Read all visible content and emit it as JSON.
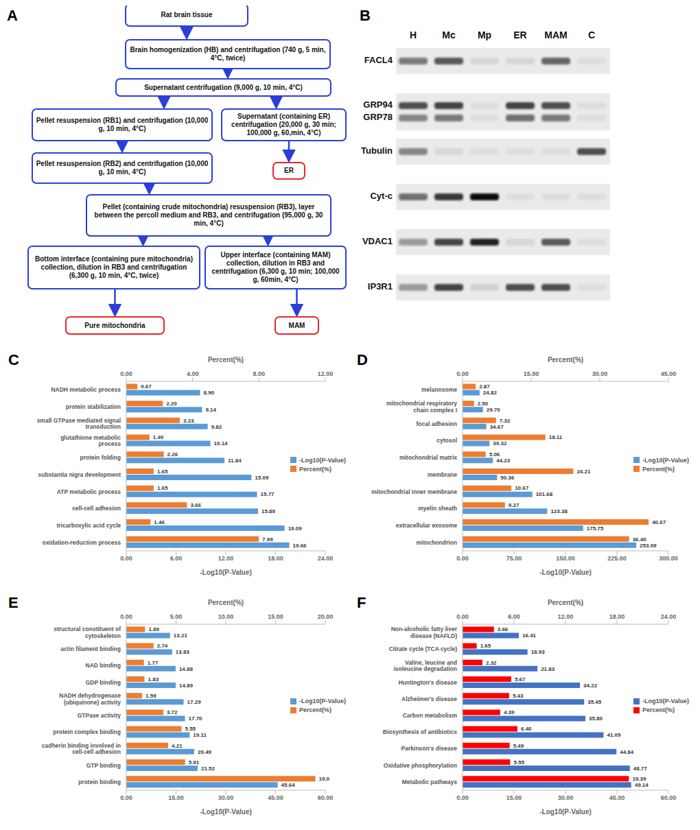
{
  "flowchart": {
    "panel": "A",
    "nodes": [
      {
        "label": "Rat brain tissue",
        "color": "#2b3fd8"
      },
      {
        "label": "Brain homogenization (HB) and centrifugation (740 g, 5 min, 4°C, twice)",
        "color": "#2b3fd8"
      },
      {
        "label": "Supernatant centrifugation (9,000 g, 10 min, 4°C)",
        "color": "#2b3fd8"
      },
      {
        "label": "Pellet resuspension (RB1) and centrifugation (10,000 g, 10 min, 4°C)",
        "color": "#2b3fd8"
      },
      {
        "label": "Supernatant (containing ER) centrifugation (20,000 g, 30 min; 100,000 g, 60,min, 4°C)",
        "color": "#2b3fd8"
      },
      {
        "label": "Pellet resuspension (RB2) and centrifugation (10,000 g, 10 min, 4°C)",
        "color": "#2b3fd8"
      },
      {
        "label": "ER",
        "color": "#e8262a"
      },
      {
        "label": "Pellet (containing crude mitochondria) resuspension (RB3), layer between the percoll medium and RB3, and centrifugation (95,000 g, 30 min, 4°C)",
        "color": "#2b3fd8"
      },
      {
        "label": "Bottom interface (containing pure mitochondria) collection, dilution in RB3 and centrifugation (6,300 g, 10 min, 4°C, twice)",
        "color": "#2b3fd8"
      },
      {
        "label": "Upper interface (containing MAM) collection, dilution in RB3 and centrifugation (6,300 g, 10 min; 100,000 g, 60min, 4°C)",
        "color": "#2b3fd8"
      },
      {
        "label": "Pure mitochondria",
        "color": "#e8262a"
      },
      {
        "label": "MAM",
        "color": "#e8262a"
      }
    ],
    "edges": [
      [
        0,
        1
      ],
      [
        1,
        2
      ],
      [
        2,
        3
      ],
      [
        2,
        4
      ],
      [
        3,
        5
      ],
      [
        4,
        6
      ],
      [
        5,
        7
      ],
      [
        7,
        8
      ],
      [
        7,
        9
      ],
      [
        8,
        10
      ],
      [
        9,
        11
      ]
    ]
  },
  "blot": {
    "panel": "B",
    "lanes": [
      "H",
      "Mc",
      "Mp",
      "ER",
      "MAM",
      "C"
    ],
    "strips": [
      {
        "labels": [
          "FACL4"
        ],
        "bands": [
          [
            0.5,
            0.65,
            0.08,
            0.08,
            0.6,
            0.05
          ]
        ]
      },
      {
        "labels": [
          "GRP94",
          "GRP78"
        ],
        "bands": [
          [
            0.7,
            0.75,
            0.05,
            0.75,
            0.7,
            0.05
          ],
          [
            0.45,
            0.5,
            0.05,
            0.55,
            0.5,
            0.05
          ]
        ]
      },
      {
        "labels": [
          "Tubulin"
        ],
        "bands": [
          [
            0.45,
            0.08,
            0.05,
            0.05,
            0.05,
            0.7
          ]
        ]
      },
      {
        "labels": [
          "Cyt-c"
        ],
        "bands": [
          [
            0.55,
            0.8,
            1,
            0.05,
            0.05,
            0.05
          ]
        ]
      },
      {
        "labels": [
          "VDAC1"
        ],
        "bands": [
          [
            0.35,
            0.75,
            0.9,
            0.08,
            0.65,
            0.05
          ]
        ]
      },
      {
        "labels": [
          "IP3R1"
        ],
        "bands": [
          [
            0.35,
            0.75,
            0.1,
            0.7,
            0.7,
            0.05
          ]
        ]
      }
    ]
  },
  "chart_data": [
    {
      "panel": "C",
      "type": "bar",
      "orientation": "horizontal",
      "grid": false,
      "data_labels": true,
      "legend": "right",
      "categories": [
        "NADH metabolic process",
        "protein stabilization",
        "small GTPase mediated signal transduction",
        "glutathione metabolic process",
        "protein folding",
        "substantia nigra development",
        "ATP metabolic process",
        "cell-cell adhesion",
        "tricarboxylic acid cycle",
        "oxidation-reduction process"
      ],
      "xlabel": "-Log10(P-Value)",
      "xlim": [
        0,
        24
      ],
      "xticks": [
        {
          "value": 0,
          "label": "0.00"
        },
        {
          "value": 6,
          "label": "6.00"
        },
        {
          "value": 12,
          "label": "12.00"
        },
        {
          "value": 18,
          "label": "18.00"
        },
        {
          "value": 24,
          "label": "24.00"
        }
      ],
      "x2label": "Percent(%)",
      "x2lim": [
        0,
        12
      ],
      "x2ticks": [
        {
          "value": 0,
          "label": "0.00"
        },
        {
          "value": 4,
          "label": "4.00"
        },
        {
          "value": 8,
          "label": "8.00"
        },
        {
          "value": 12,
          "label": "12.00"
        }
      ],
      "series": [
        {
          "name": "-Log10(P-Value)",
          "color": "#5b9bd5",
          "values": [
            8.9,
            9.14,
            9.82,
            10.14,
            11.84,
            15.09,
            15.77,
            15.89,
            19.09,
            19.66
          ],
          "value_labels": [
            "8.90",
            "9.14",
            "9.82",
            "10.14",
            "11.84",
            "15.09",
            "15.77",
            "15.89",
            "19.09",
            "19.66"
          ]
        },
        {
          "name": "Percent(%)",
          "color": "#ed7d31",
          "axis": "x2",
          "values": [
            0.67,
            2.2,
            3.23,
            1.4,
            2.26,
            1.65,
            1.65,
            3.66,
            1.46,
            7.99
          ],
          "value_labels": [
            "0.67",
            "2.20",
            "3.23",
            "1.40",
            "2.26",
            "1.65",
            "1.65",
            "3.66",
            "1.46",
            "7.99"
          ]
        }
      ]
    },
    {
      "panel": "D",
      "type": "bar",
      "orientation": "horizontal",
      "grid": false,
      "data_labels": true,
      "legend": "right",
      "categories": [
        "melanosome",
        "mitochondrial respiratory chain complex I",
        "focal adhesion",
        "cytosol",
        "mitochondrial matrix",
        "membrane",
        "mitochondrial inner membrane",
        "myelin sheath",
        "extracellular exosome",
        "mitochondrion"
      ],
      "xlabel": "-Log10(P-Value)",
      "xlim": [
        0,
        300
      ],
      "xticks": [
        {
          "value": 0,
          "label": "0.00"
        },
        {
          "value": 75,
          "label": "75.00"
        },
        {
          "value": 150,
          "label": "150.00"
        },
        {
          "value": 225,
          "label": "225.00"
        },
        {
          "value": 300,
          "label": "300.00"
        }
      ],
      "x2label": "Percent(%)",
      "x2lim": [
        0,
        45
      ],
      "x2ticks": [
        {
          "value": 0,
          "label": "0.00"
        },
        {
          "value": 15,
          "label": "15.00"
        },
        {
          "value": 30,
          "label": "30.00"
        },
        {
          "value": 45,
          "label": "45.00"
        }
      ],
      "series": [
        {
          "name": "-Log10(P-Value)",
          "color": "#5b9bd5",
          "values": [
            24.82,
            29.7,
            34.67,
            39.32,
            44.23,
            50.36,
            101.68,
            123.38,
            175.75,
            253.09
          ],
          "value_labels": [
            "24.82",
            "29.70",
            "34.67",
            "39.32",
            "44.23",
            "50.36",
            "101.68",
            "123.38",
            "175.75",
            "253.09"
          ]
        },
        {
          "name": "Percent(%)",
          "color": "#ed7d31",
          "axis": "x2",
          "values": [
            2.87,
            2.5,
            7.32,
            18.11,
            5.06,
            24.21,
            10.67,
            9.27,
            40.67,
            36.4
          ],
          "value_labels": [
            "2.87",
            "2.50",
            "7.32",
            "18.11",
            "5.06",
            "24.21",
            "10.67",
            "9.27",
            "40.67",
            "36.40"
          ]
        }
      ]
    },
    {
      "panel": "E",
      "type": "bar",
      "orientation": "horizontal",
      "grid": false,
      "data_labels": true,
      "legend": "right",
      "categories": [
        "structural constituent of cytoskeleton",
        "actin filament binding",
        "NAD binding",
        "GDP binding",
        "NADH dehydrogenase (ubiquinone) activity",
        "GTPase activity",
        "protein complex binding",
        "cadherin binding involved in cell-cell adhesion",
        "GTP binding",
        "protein binding"
      ],
      "xlabel": "-Log10(P-Value)",
      "xlim": [
        0,
        60
      ],
      "xticks": [
        {
          "value": 0,
          "label": "0.00"
        },
        {
          "value": 15,
          "label": "15.00"
        },
        {
          "value": 30,
          "label": "30.00"
        },
        {
          "value": 45,
          "label": "45.00"
        },
        {
          "value": 60,
          "label": "60.00"
        }
      ],
      "x2label": "Percent(%)",
      "x2lim": [
        0,
        20
      ],
      "x2ticks": [
        {
          "value": 0,
          "label": "0.00"
        },
        {
          "value": 5,
          "label": "5.00"
        },
        {
          "value": 10,
          "label": "10.00"
        },
        {
          "value": 15,
          "label": "15.00"
        },
        {
          "value": 20,
          "label": "20.00"
        }
      ],
      "series": [
        {
          "name": "-Log10(P-Value)",
          "color": "#5b9bd5",
          "values": [
            13.21,
            13.83,
            14.88,
            14.89,
            17.29,
            17.7,
            19.11,
            20.49,
            21.52,
            45.64
          ],
          "value_labels": [
            "13.21",
            "13.83",
            "14.88",
            "14.89",
            "17.29",
            "17.70",
            "19.11",
            "20.49",
            "21.52",
            "45.64"
          ]
        },
        {
          "name": "Percent(%)",
          "color": "#ed7d31",
          "axis": "x2",
          "values": [
            1.89,
            2.74,
            1.77,
            1.83,
            1.59,
            3.72,
            5.55,
            4.21,
            5.91,
            19.0
          ],
          "value_labels": [
            "1.89",
            "2.74",
            "1.77",
            "1.83",
            "1.59",
            "3.72",
            "5.55",
            "4.21",
            "5.91",
            "19.0"
          ]
        }
      ]
    },
    {
      "panel": "F",
      "type": "bar",
      "orientation": "horizontal",
      "grid": false,
      "data_labels": true,
      "legend": "right",
      "categories": [
        "Non-alcoholic fatty liver disease (NAFLD)",
        "Citrate cycle (TCA cycle)",
        "Valine, leucine and isoleucine degradation",
        "Huntington's disease",
        "Alzheimer's disease",
        "Carbon metabolism",
        "Biosynthesis of antibiotics",
        "Parkinson's disease",
        "Oxidative phosphorylation",
        "Metabolic pathways"
      ],
      "xlabel": "-Log10(P-Value)",
      "xlim": [
        0,
        60
      ],
      "xticks": [
        {
          "value": 0,
          "label": "0.00"
        },
        {
          "value": 15,
          "label": "15.00"
        },
        {
          "value": 30,
          "label": "30.00"
        },
        {
          "value": 45,
          "label": "45.00"
        },
        {
          "value": 60,
          "label": "60.00"
        }
      ],
      "x2label": "Percent(%)",
      "x2lim": [
        0,
        24
      ],
      "x2ticks": [
        {
          "value": 0,
          "label": "0.00"
        },
        {
          "value": 6,
          "label": "6.00"
        },
        {
          "value": 12,
          "label": "12.00"
        },
        {
          "value": 18,
          "label": "18.00"
        },
        {
          "value": 24,
          "label": "24.00"
        }
      ],
      "series": [
        {
          "name": "-Log10(P-Value)",
          "color": "#4472c4",
          "values": [
            16.41,
            18.93,
            21.83,
            34.22,
            35.45,
            35.8,
            41.09,
            44.84,
            48.77,
            49.14
          ],
          "value_labels": [
            "16.41",
            "18.93",
            "21.83",
            "34.22",
            "35.45",
            "35.80",
            "41.09",
            "44.84",
            "48.77",
            "49.14"
          ]
        },
        {
          "name": "Percent(%)",
          "color": "#ff0000",
          "axis": "x2",
          "values": [
            3.66,
            1.65,
            2.32,
            5.67,
            5.43,
            4.39,
            6.4,
            5.49,
            5.55,
            19.39
          ],
          "value_labels": [
            "3.66",
            "1.65",
            "2.32",
            "5.67",
            "5.43",
            "4.39",
            "6.40",
            "5.49",
            "5.55",
            "19.39"
          ]
        }
      ]
    }
  ]
}
